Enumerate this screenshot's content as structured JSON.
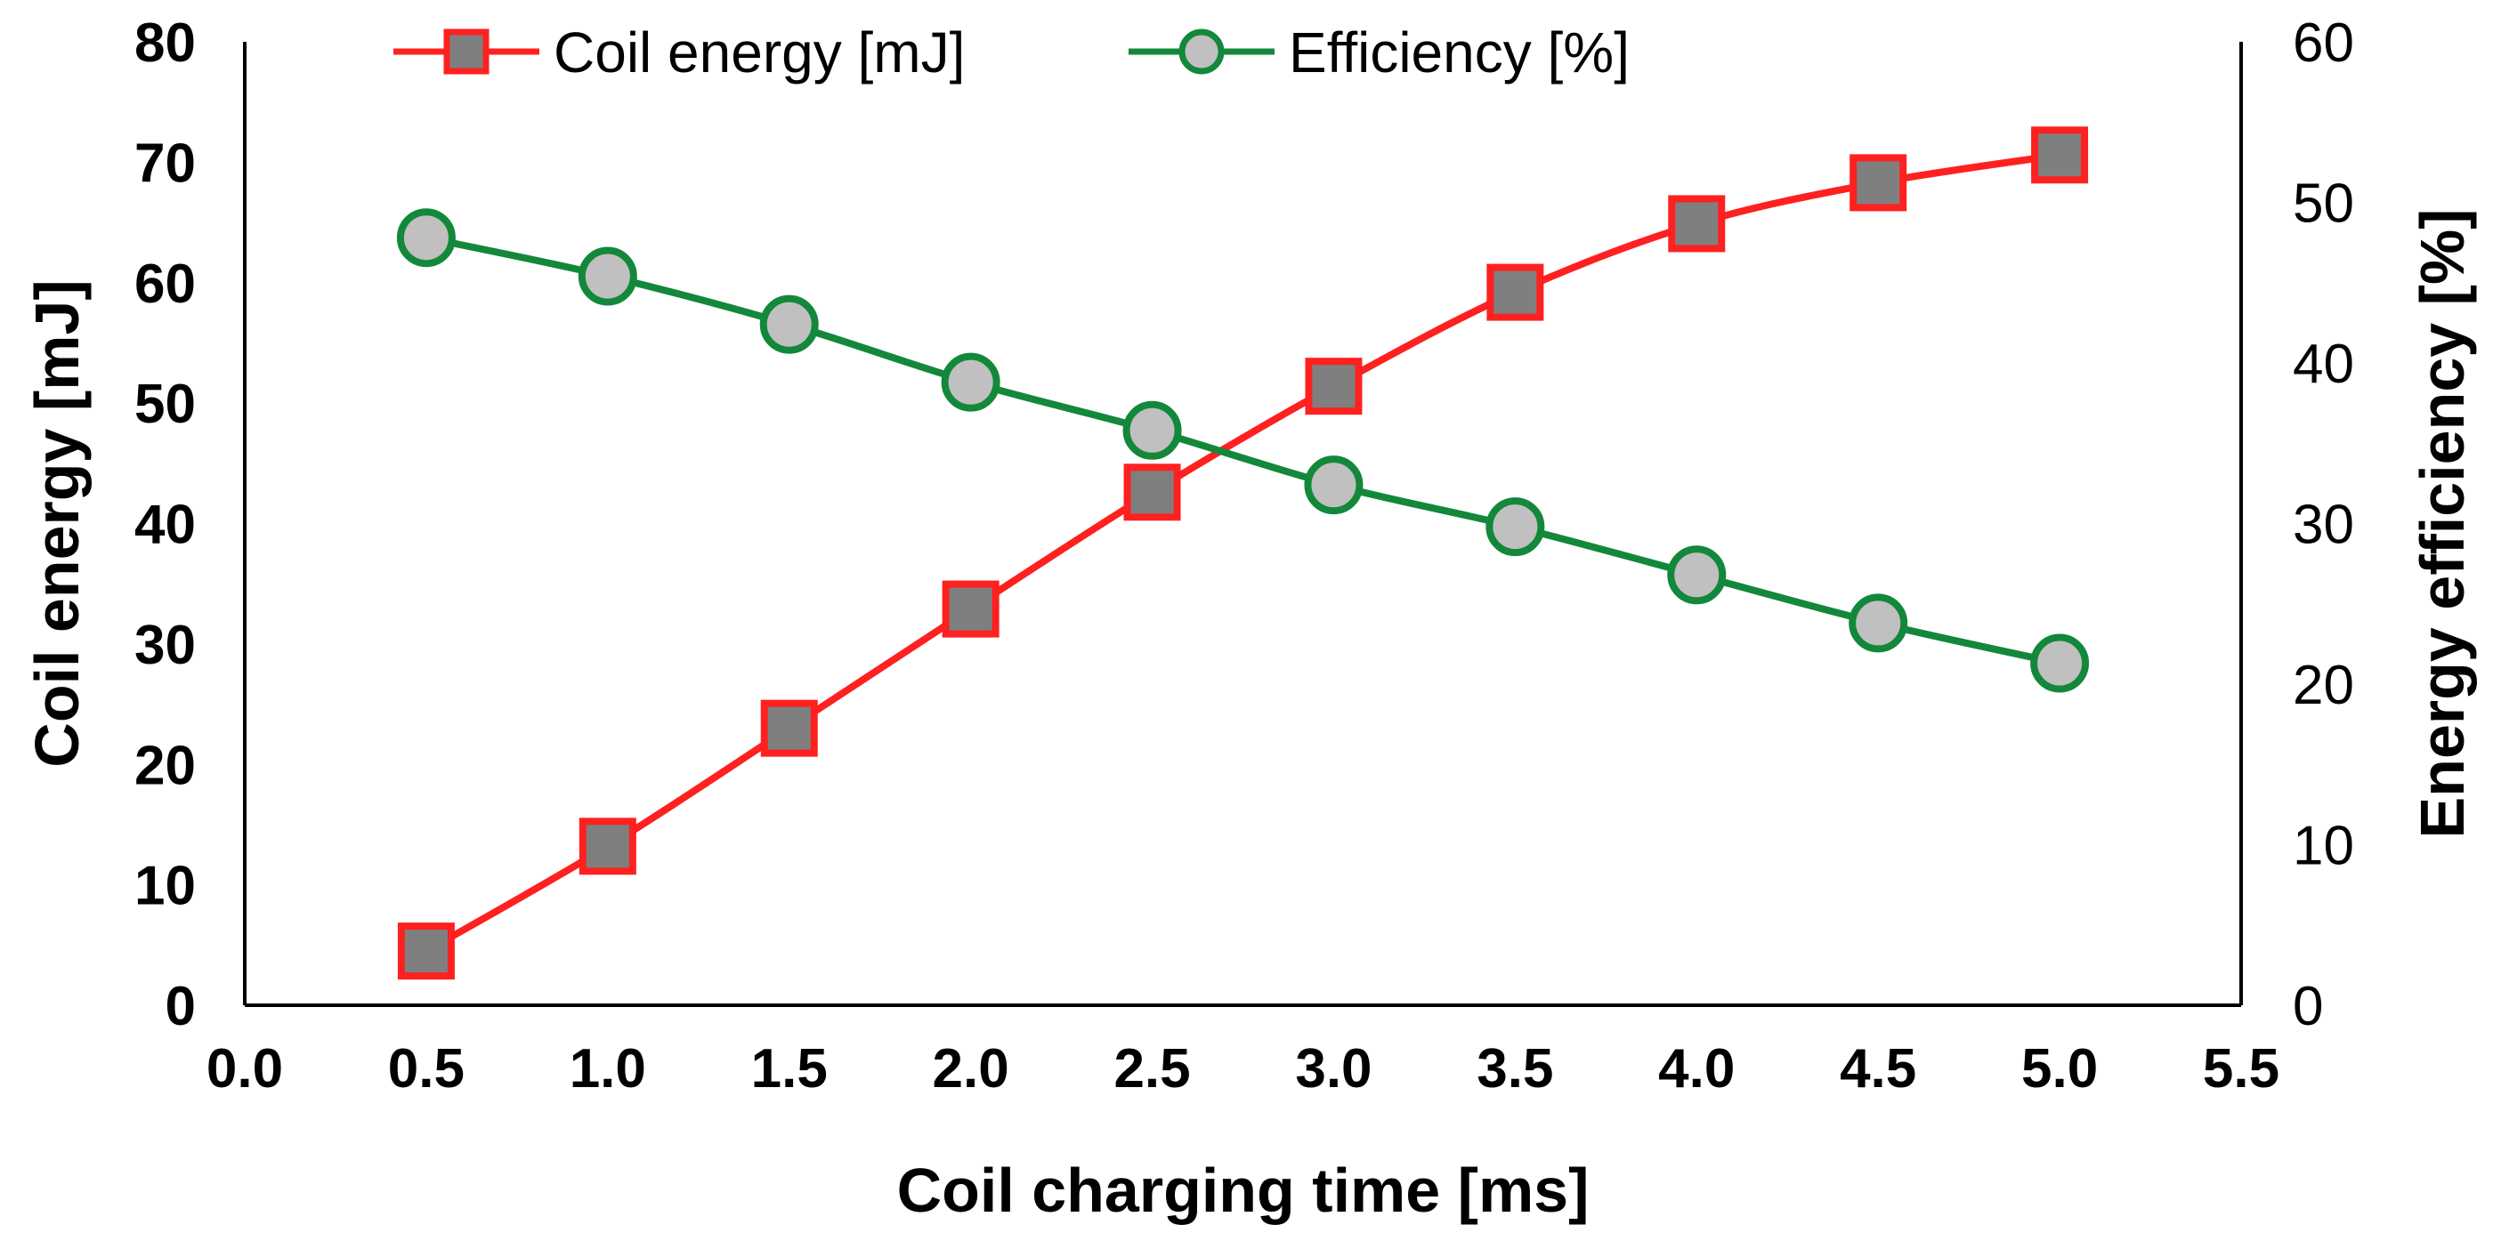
{
  "chart_data": {
    "type": "line",
    "title": "",
    "x": [
      0.5,
      1.0,
      1.5,
      2.0,
      2.5,
      3.0,
      3.5,
      4.0,
      4.5,
      5.0
    ],
    "xlabel": "Coil charging time [ms]",
    "ylabel": "Coil energy [mJ]",
    "y2label": "Energy efficiency [%]",
    "xlim": [
      0.0,
      5.5
    ],
    "ylim": [
      0,
      80
    ],
    "y2lim": [
      0,
      60
    ],
    "x_ticks": [
      "0.0",
      "0.5",
      "1.0",
      "1.5",
      "2.0",
      "2.5",
      "3.0",
      "3.5",
      "4.0",
      "4.5",
      "5.0",
      "5.5"
    ],
    "y_ticks": [
      "0",
      "10",
      "20",
      "30",
      "40",
      "50",
      "60",
      "70",
      "80"
    ],
    "y2_ticks": [
      "0",
      "10",
      "20",
      "30",
      "40",
      "50",
      "60"
    ],
    "grid": false,
    "legend_position": "top",
    "series": [
      {
        "name": "Coil energy [mJ]",
        "axis": "left",
        "marker": "square",
        "line_color": "#ff2020",
        "marker_fill": "#7f7f7f",
        "values": [
          4.5,
          13.2,
          23.0,
          32.9,
          42.6,
          51.4,
          59.2,
          64.9,
          68.3,
          70.6
        ]
      },
      {
        "name": "Efficiency [%]",
        "axis": "right",
        "marker": "circle",
        "line_color": "#13883a",
        "marker_fill": "#c0c0c0",
        "values": [
          47.8,
          45.4,
          42.4,
          38.8,
          35.8,
          32.4,
          29.8,
          26.8,
          23.8,
          21.3
        ]
      }
    ]
  }
}
